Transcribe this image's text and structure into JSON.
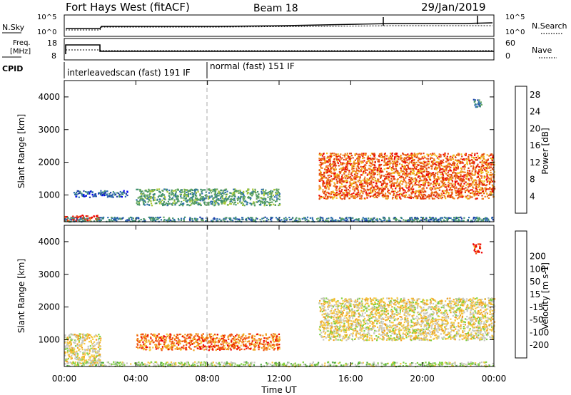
{
  "header": {
    "station": "Fort Hays West (fitACF)",
    "beam": "Beam 18",
    "date": "29/Jan/2019"
  },
  "panels": {
    "nsky_label": "N.Sky",
    "nsearch_label": "N.Search",
    "noise_ticks_left": [
      "10^5",
      "10^0"
    ],
    "noise_ticks_right": [
      "10^5",
      "10^0"
    ],
    "freq_label_line1": "Freq.",
    "freq_label_line2": "[MHz]",
    "freq_ticks": [
      "18",
      "8"
    ],
    "nave_label": "Nave",
    "nave_ticks": [
      "60",
      "0"
    ],
    "cpid_label": "CPID",
    "cpid_segments": [
      {
        "label": "interleavedscan (fast) 191 IF",
        "start_hour": 0,
        "end_hour": 8
      },
      {
        "label": "normal (fast) 151 IF",
        "start_hour": 8,
        "end_hour": 24
      }
    ]
  },
  "colors": {
    "power": [
      "#0000ee",
      "#1f3fa8",
      "#2f6fb0",
      "#3f8f6f",
      "#5fa35f",
      "#a8c832",
      "#f0c020",
      "#f08020",
      "#e04010",
      "#ee0000"
    ],
    "velocity": [
      "#ee0000",
      "#f05010",
      "#f0a020",
      "#f5c840",
      "#c8c8c0",
      "#7fd03f",
      "#4fa83f",
      "#3f8f6f",
      "#2f5fa8",
      "#1f2fa8"
    ]
  },
  "chart_data": [
    {
      "type": "heatmap",
      "name": "power",
      "title": "Fort Hays West (fitACF) Beam 18",
      "xlabel": "Time UT",
      "ylabel": "Slant Range [km]",
      "xlim_hours": [
        0,
        24
      ],
      "ylim_km": [
        180,
        4500
      ],
      "x_ticks": [
        "00:00",
        "04:00",
        "08:00",
        "12:00",
        "16:00",
        "20:00",
        "00:00"
      ],
      "y_ticks": [
        1000,
        2000,
        3000,
        4000
      ],
      "colorbar": {
        "label": "Power [dB]",
        "range": [
          0,
          30
        ],
        "ticks": [
          4,
          8,
          12,
          16,
          20,
          24,
          28
        ]
      },
      "regions": [
        {
          "hours": [
            0.0,
            2.0
          ],
          "range_km": [
            230,
            400
          ],
          "level_db": 28
        },
        {
          "hours": [
            0.0,
            24.0
          ],
          "range_km": [
            200,
            340
          ],
          "level_db": 10
        },
        {
          "hours": [
            0.5,
            3.5
          ],
          "range_km": [
            950,
            1150
          ],
          "level_db": 8
        },
        {
          "hours": [
            4.0,
            12.0
          ],
          "range_km": [
            700,
            1200
          ],
          "level_db": 14
        },
        {
          "hours": [
            14.2,
            24.0
          ],
          "range_km": [
            900,
            2300
          ],
          "level_db": 24
        },
        {
          "hours": [
            22.8,
            23.3
          ],
          "range_km": [
            3700,
            3950
          ],
          "level_db": 10
        }
      ]
    },
    {
      "type": "heatmap",
      "name": "velocity",
      "xlabel": "Time UT",
      "ylabel": "Slant Range [km]",
      "xlim_hours": [
        0,
        24
      ],
      "ylim_km": [
        180,
        4500
      ],
      "x_ticks": [
        "00:00",
        "04:00",
        "08:00",
        "12:00",
        "16:00",
        "20:00",
        "00:00"
      ],
      "y_ticks": [
        1000,
        2000,
        3000,
        4000
      ],
      "colorbar": {
        "label": "Velocity [m s-1]",
        "tick_labels": [
          "-200",
          "-100",
          "-50",
          "-15",
          "15",
          "50",
          "100",
          "200"
        ]
      },
      "regions": [
        {
          "hours": [
            0.0,
            24.0
          ],
          "range_km": [
            200,
            340
          ],
          "velocity": 50
        },
        {
          "hours": [
            0.0,
            2.0
          ],
          "range_km": [
            300,
            1200
          ],
          "velocity": 0
        },
        {
          "hours": [
            4.0,
            12.0
          ],
          "range_km": [
            700,
            1200
          ],
          "velocity": -50
        },
        {
          "hours": [
            14.2,
            24.0
          ],
          "range_km": [
            1000,
            2300
          ],
          "velocity": 0
        },
        {
          "hours": [
            22.8,
            23.3
          ],
          "range_km": [
            3650,
            3950
          ],
          "velocity": -100
        }
      ]
    }
  ]
}
